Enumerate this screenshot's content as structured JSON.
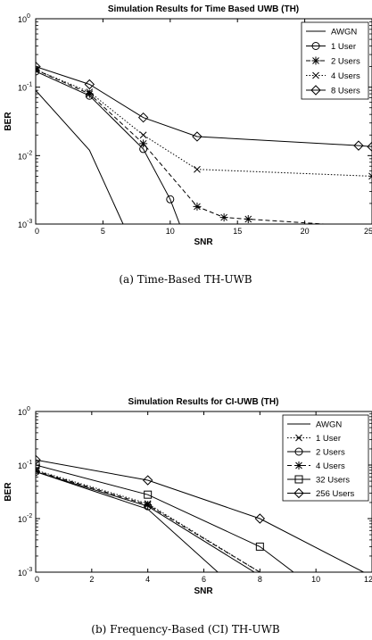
{
  "chart_data": [
    {
      "type": "line",
      "title": "Simulation Results for Time Based UWB (TH)",
      "xlabel": "SNR",
      "ylabel": "BER",
      "yscale": "log",
      "xlim": [
        0,
        25
      ],
      "ylim": [
        0.001,
        1
      ],
      "xticks": [
        "0",
        "5",
        "10",
        "15",
        "20",
        "25"
      ],
      "yticks": [
        {
          "base": "10",
          "exp": "0"
        },
        {
          "base": "10",
          "exp": "-1"
        },
        {
          "base": "10",
          "exp": "-2"
        },
        {
          "base": "10",
          "exp": "-3"
        }
      ],
      "grid": false,
      "legend": "top-right",
      "caption": "(a) Time-Based TH-UWB",
      "series": [
        {
          "name": "AWGN",
          "style": "solid",
          "marker": "none",
          "x": [
            0,
            4,
            6.5
          ],
          "y": [
            0.09,
            0.012,
            0.001
          ]
        },
        {
          "name": "1 User",
          "style": "solid",
          "marker": "circle",
          "x": [
            0,
            4,
            8,
            10,
            10.7
          ],
          "y": [
            0.17,
            0.075,
            0.0125,
            0.0023,
            0.001
          ]
        },
        {
          "name": "2 Users",
          "style": "dashed",
          "marker": "star",
          "x": [
            0,
            4,
            8,
            12,
            14,
            15.8,
            25
          ],
          "y": [
            0.18,
            0.08,
            0.015,
            0.0018,
            0.00125,
            0.00118,
            0.0009
          ]
        },
        {
          "name": "4 Users",
          "style": "dotted",
          "marker": "x",
          "x": [
            0,
            4,
            8,
            12,
            25
          ],
          "y": [
            0.18,
            0.085,
            0.02,
            0.0063,
            0.005
          ]
        },
        {
          "name": "8 Users",
          "style": "solid",
          "marker": "diamond",
          "x": [
            0,
            4,
            8,
            12,
            24,
            25
          ],
          "y": [
            0.2,
            0.11,
            0.036,
            0.019,
            0.014,
            0.0135
          ]
        }
      ]
    },
    {
      "type": "line",
      "title": "Simulation Results for CI-UWB (TH)",
      "xlabel": "SNR",
      "ylabel": "BER",
      "yscale": "log",
      "xlim": [
        0,
        12
      ],
      "ylim": [
        0.001,
        1
      ],
      "xticks": [
        "0",
        "2",
        "4",
        "6",
        "8",
        "10",
        "12"
      ],
      "yticks": [
        {
          "base": "10",
          "exp": "0"
        },
        {
          "base": "10",
          "exp": "-1"
        },
        {
          "base": "10",
          "exp": "-2"
        },
        {
          "base": "10",
          "exp": "-3"
        }
      ],
      "grid": false,
      "legend": "top-right",
      "caption": "(b) Frequency-Based (CI) TH-UWB",
      "series": [
        {
          "name": "AWGN",
          "style": "solid",
          "marker": "none",
          "x": [
            0,
            4,
            6.5
          ],
          "y": [
            0.075,
            0.015,
            0.001
          ]
        },
        {
          "name": "1 User",
          "style": "dotted",
          "marker": "x",
          "x": [
            0,
            4,
            8
          ],
          "y": [
            0.08,
            0.019,
            0.001
          ]
        },
        {
          "name": "2 Users",
          "style": "solid",
          "marker": "circle",
          "x": [
            0,
            4,
            7.8
          ],
          "y": [
            0.075,
            0.017,
            0.001
          ]
        },
        {
          "name": "4 Users",
          "style": "dashed",
          "marker": "star",
          "x": [
            0,
            4,
            8
          ],
          "y": [
            0.078,
            0.018,
            0.001
          ]
        },
        {
          "name": "32 Users",
          "style": "solid",
          "marker": "square",
          "x": [
            0,
            4,
            8,
            9.2
          ],
          "y": [
            0.1,
            0.028,
            0.003,
            0.001
          ]
        },
        {
          "name": "256 Users",
          "style": "solid",
          "marker": "diamond",
          "x": [
            0,
            4,
            8,
            11.7
          ],
          "y": [
            0.125,
            0.052,
            0.01,
            0.001
          ]
        }
      ]
    }
  ]
}
